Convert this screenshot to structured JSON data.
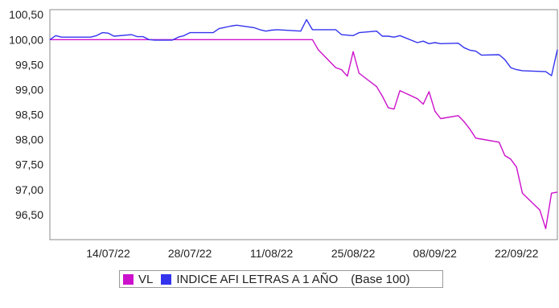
{
  "chart_data": {
    "type": "line",
    "title": "",
    "xlabel": "",
    "ylabel": "",
    "x_range": [
      "2022-07-04",
      "2022-09-29"
    ],
    "ylim": [
      96.0,
      100.6
    ],
    "y_ticks": [
      "100,50",
      "100,00",
      "99,50",
      "99,00",
      "98,50",
      "98,00",
      "97,50",
      "97,00",
      "96,50"
    ],
    "x_ticks": [
      "14/07/22",
      "28/07/22",
      "11/08/22",
      "25/08/22",
      "08/09/22",
      "22/09/22"
    ],
    "grid": false,
    "legend_position": "bottom",
    "series": [
      {
        "name": "VL",
        "color": "#cc11cc",
        "points": [
          [
            "2022-07-04",
            100.0
          ],
          [
            "2022-08-18",
            100.0
          ],
          [
            "2022-08-19",
            99.8
          ],
          [
            "2022-08-22",
            99.44
          ],
          [
            "2022-08-23",
            99.4
          ],
          [
            "2022-08-24",
            99.27
          ],
          [
            "2022-08-25",
            99.76
          ],
          [
            "2022-08-26",
            99.33
          ],
          [
            "2022-08-29",
            99.06
          ],
          [
            "2022-08-30",
            98.87
          ],
          [
            "2022-08-31",
            98.64
          ],
          [
            "2022-09-01",
            98.61
          ],
          [
            "2022-09-02",
            98.98
          ],
          [
            "2022-09-05",
            98.82
          ],
          [
            "2022-09-06",
            98.71
          ],
          [
            "2022-09-07",
            98.96
          ],
          [
            "2022-09-08",
            98.57
          ],
          [
            "2022-09-09",
            98.42
          ],
          [
            "2022-09-12",
            98.48
          ],
          [
            "2022-09-13",
            98.36
          ],
          [
            "2022-09-14",
            98.21
          ],
          [
            "2022-09-15",
            98.03
          ],
          [
            "2022-09-16",
            98.01
          ],
          [
            "2022-09-19",
            97.95
          ],
          [
            "2022-09-20",
            97.68
          ],
          [
            "2022-09-21",
            97.61
          ],
          [
            "2022-09-22",
            97.45
          ],
          [
            "2022-09-23",
            96.93
          ],
          [
            "2022-09-26",
            96.59
          ],
          [
            "2022-09-27",
            96.22
          ],
          [
            "2022-09-28",
            96.93
          ],
          [
            "2022-09-29",
            96.95
          ]
        ]
      },
      {
        "name": "INDICE AFI LETRAS A 1 AÑO",
        "color": "#3333ee",
        "points": [
          [
            "2022-07-04",
            100.0
          ],
          [
            "2022-07-05",
            100.08
          ],
          [
            "2022-07-06",
            100.05
          ],
          [
            "2022-07-11",
            100.05
          ],
          [
            "2022-07-12",
            100.08
          ],
          [
            "2022-07-13",
            100.14
          ],
          [
            "2022-07-14",
            100.13
          ],
          [
            "2022-07-15",
            100.07
          ],
          [
            "2022-07-18",
            100.1
          ],
          [
            "2022-07-19",
            100.06
          ],
          [
            "2022-07-20",
            100.06
          ],
          [
            "2022-07-21",
            100.0
          ],
          [
            "2022-07-22",
            99.99
          ],
          [
            "2022-07-25",
            99.99
          ],
          [
            "2022-07-26",
            100.05
          ],
          [
            "2022-07-27",
            100.08
          ],
          [
            "2022-07-28",
            100.14
          ],
          [
            "2022-08-01",
            100.14
          ],
          [
            "2022-08-02",
            100.22
          ],
          [
            "2022-08-04",
            100.27
          ],
          [
            "2022-08-05",
            100.29
          ],
          [
            "2022-08-08",
            100.24
          ],
          [
            "2022-08-09",
            100.2
          ],
          [
            "2022-08-10",
            100.17
          ],
          [
            "2022-08-11",
            100.19
          ],
          [
            "2022-08-12",
            100.2
          ],
          [
            "2022-08-16",
            100.17
          ],
          [
            "2022-08-17",
            100.4
          ],
          [
            "2022-08-18",
            100.2
          ],
          [
            "2022-08-22",
            100.2
          ],
          [
            "2022-08-23",
            100.1
          ],
          [
            "2022-08-25",
            100.08
          ],
          [
            "2022-08-26",
            100.14
          ],
          [
            "2022-08-29",
            100.17
          ],
          [
            "2022-08-30",
            100.07
          ],
          [
            "2022-08-31",
            100.07
          ],
          [
            "2022-09-01",
            100.05
          ],
          [
            "2022-09-02",
            100.08
          ],
          [
            "2022-09-05",
            99.94
          ],
          [
            "2022-09-06",
            99.97
          ],
          [
            "2022-09-07",
            99.92
          ],
          [
            "2022-09-08",
            99.94
          ],
          [
            "2022-09-09",
            99.92
          ],
          [
            "2022-09-12",
            99.93
          ],
          [
            "2022-09-13",
            99.84
          ],
          [
            "2022-09-14",
            99.79
          ],
          [
            "2022-09-15",
            99.77
          ],
          [
            "2022-09-16",
            99.69
          ],
          [
            "2022-09-19",
            99.7
          ],
          [
            "2022-09-20",
            99.6
          ],
          [
            "2022-09-21",
            99.44
          ],
          [
            "2022-09-22",
            99.4
          ],
          [
            "2022-09-23",
            99.38
          ],
          [
            "2022-09-27",
            99.36
          ],
          [
            "2022-09-28",
            99.28
          ],
          [
            "2022-09-29",
            99.8
          ]
        ]
      }
    ]
  },
  "legend": {
    "items": [
      {
        "label": "VL",
        "color": "#cc11cc"
      },
      {
        "label": "INDICE AFI LETRAS A 1 AÑO",
        "color": "#3333ee"
      }
    ],
    "note": "(Base 100)"
  }
}
